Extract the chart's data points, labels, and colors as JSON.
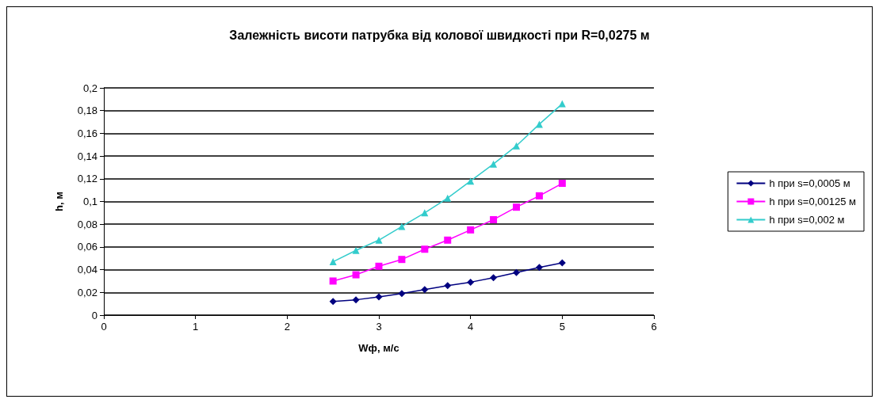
{
  "chart_data": {
    "type": "line",
    "title": "Залежність висоти патрубка від колової швидкості при R=0,0275 м",
    "xlabel": "Wф, м/с",
    "ylabel": "h, м",
    "x": [
      2.5,
      2.75,
      3,
      3.25,
      3.5,
      3.75,
      4,
      4.25,
      4.5,
      4.75,
      5
    ],
    "series": [
      {
        "name": "h при s=0,0005 м",
        "color": "#000080",
        "marker": "diamond",
        "values": [
          0.012,
          0.0135,
          0.016,
          0.019,
          0.0225,
          0.026,
          0.029,
          0.033,
          0.0375,
          0.042,
          0.046
        ]
      },
      {
        "name": "h при s=0,00125 м",
        "color": "#ff00ff",
        "marker": "square",
        "values": [
          0.03,
          0.0355,
          0.043,
          0.049,
          0.058,
          0.066,
          0.075,
          0.084,
          0.095,
          0.105,
          0.116
        ]
      },
      {
        "name": "h при s=0,002 м",
        "color": "#33cccc",
        "marker": "triangle",
        "values": [
          0.047,
          0.057,
          0.066,
          0.078,
          0.09,
          0.103,
          0.118,
          0.133,
          0.149,
          0.168,
          0.186
        ]
      }
    ],
    "xlim": [
      0,
      6
    ],
    "xticks": [
      0,
      1,
      2,
      3,
      4,
      5,
      6
    ],
    "ylim": [
      0,
      0.2
    ],
    "yticks": [
      {
        "value": 0,
        "label": "0"
      },
      {
        "value": 0.02,
        "label": "0,02"
      },
      {
        "value": 0.04,
        "label": "0,04"
      },
      {
        "value": 0.06,
        "label": "0,06"
      },
      {
        "value": 0.08,
        "label": "0,08"
      },
      {
        "value": 0.1,
        "label": "0,1"
      },
      {
        "value": 0.12,
        "label": "0,12"
      },
      {
        "value": 0.14,
        "label": "0,14"
      },
      {
        "value": 0.16,
        "label": "0,16"
      },
      {
        "value": 0.18,
        "label": "0,18"
      },
      {
        "value": 0.2,
        "label": "0,2"
      }
    ],
    "grid": "y",
    "legend": "right",
    "line_style": "solid"
  }
}
